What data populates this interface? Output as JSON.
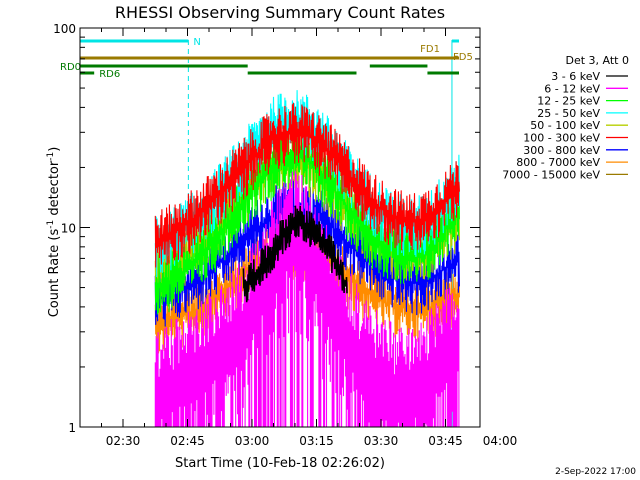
{
  "chart_data": {
    "type": "line",
    "title": "RHESSI Observing Summary Count Rates",
    "xlabel": "Start Time (10-Feb-18 02:26:02)",
    "ylabel_main": "Count Rate (s",
    "ylabel_exp1": "-1",
    "ylabel_mid": " detector",
    "ylabel_exp2": "-1",
    "ylabel_end": ")",
    "timestamp": "2-Sep-2022 17:00",
    "x_range_min": [
      20,
      110
    ],
    "x_ticks": [
      {
        "min": 30,
        "label": "02:30"
      },
      {
        "min": 45,
        "label": "02:45"
      },
      {
        "min": 60,
        "label": "03:00"
      },
      {
        "min": 75,
        "label": "03:15"
      },
      {
        "min": 90,
        "label": "03:30"
      },
      {
        "min": 105,
        "label": "03:45"
      },
      {
        "min": 120,
        "label": "04:00"
      }
    ],
    "ylim": [
      1,
      100
    ],
    "y_scale": "log",
    "y_ticks": [
      {
        "value": 1,
        "label": "1"
      },
      {
        "value": 10,
        "label": "10"
      },
      {
        "value": 100,
        "label": "100"
      }
    ],
    "legend_title": "Det 3, Att 0",
    "series": [
      {
        "name": "3 - 6 keV",
        "color": "#000000",
        "times": [
          58,
          63,
          67,
          71,
          75,
          79,
          82
        ],
        "values": [
          5,
          6.5,
          9,
          11,
          9,
          7,
          5
        ]
      },
      {
        "name": "6 - 12 keV",
        "color": "#ff00ff",
        "times": [
          37,
          40,
          43,
          46,
          49,
          52,
          55,
          58,
          61,
          64,
          67,
          70,
          73,
          76,
          79,
          82,
          85,
          88,
          91,
          94,
          97,
          100,
          103,
          106,
          109
        ],
        "values": [
          1.5,
          1.7,
          1.8,
          2.0,
          2.3,
          2.6,
          3.0,
          3.5,
          4.5,
          6.5,
          8.5,
          10.0,
          8.5,
          6.0,
          4.5,
          3.2,
          2.5,
          2.0,
          1.8,
          1.6,
          1.6,
          1.8,
          2.2,
          2.6,
          3.0
        ]
      },
      {
        "name": "12 - 25 keV",
        "color": "#00ff00",
        "times": [
          37,
          40,
          43,
          46,
          49,
          52,
          55,
          58,
          61,
          64,
          67,
          70,
          73,
          76,
          79,
          82,
          85,
          88,
          91,
          94,
          97,
          100,
          103,
          106,
          109
        ],
        "values": [
          5.0,
          5.3,
          5.8,
          6.5,
          7.5,
          9.0,
          11.0,
          13.5,
          16.5,
          19.5,
          22.0,
          23.0,
          21.5,
          18.5,
          15.5,
          12.5,
          10.5,
          9.0,
          8.0,
          7.3,
          7.0,
          7.3,
          8.5,
          11.0,
          14.0
        ]
      },
      {
        "name": "25 - 50 keV",
        "color": "#00ffff",
        "times": [
          37,
          40,
          43,
          46,
          49,
          52,
          55,
          58,
          61,
          64,
          67,
          70,
          73,
          76,
          79,
          82,
          85,
          88,
          91,
          94,
          97,
          100,
          103,
          106,
          109
        ],
        "values": [
          8.0,
          8.5,
          9.3,
          10.5,
          12.0,
          14.5,
          17.5,
          21.5,
          26.0,
          31.0,
          34.0,
          35.0,
          33.0,
          28.5,
          23.5,
          19.0,
          15.5,
          13.0,
          11.5,
          10.5,
          10.0,
          10.5,
          12.0,
          15.0,
          19.0
        ]
      },
      {
        "name": "50 - 100 keV",
        "color": "#b7cf00",
        "times": [
          37,
          40,
          43,
          46,
          49,
          52,
          55,
          58,
          61,
          64,
          67,
          70,
          73,
          76,
          79,
          82,
          85,
          88,
          91,
          94,
          97,
          100,
          103,
          106,
          109
        ],
        "values": [
          6.0,
          6.3,
          6.8,
          7.5,
          8.5,
          10.0,
          12.0,
          14.5,
          17.0,
          19.5,
          21.0,
          22.0,
          20.5,
          18.0,
          15.0,
          12.5,
          10.5,
          9.0,
          8.2,
          7.6,
          7.3,
          7.6,
          8.5,
          10.0,
          11.5
        ]
      },
      {
        "name": "100 - 300 keV",
        "color": "#ff0000",
        "times": [
          37,
          40,
          43,
          46,
          49,
          52,
          55,
          58,
          61,
          64,
          67,
          70,
          73,
          76,
          79,
          82,
          85,
          88,
          91,
          94,
          97,
          100,
          103,
          106,
          109
        ],
        "values": [
          8.5,
          9.0,
          9.8,
          11.0,
          12.5,
          14.5,
          17.0,
          20.0,
          23.5,
          27.0,
          29.5,
          30.0,
          29.0,
          26.0,
          22.5,
          19.0,
          16.0,
          13.5,
          12.0,
          11.0,
          10.5,
          11.0,
          12.5,
          14.5,
          17.0
        ]
      },
      {
        "name": "300 - 800 keV",
        "color": "#0000ff",
        "times": [
          37,
          40,
          43,
          46,
          49,
          52,
          55,
          58,
          61,
          64,
          67,
          70,
          73,
          76,
          79,
          82,
          85,
          88,
          91,
          94,
          97,
          100,
          103,
          106,
          109
        ],
        "values": [
          4.4,
          4.6,
          4.9,
          5.3,
          5.8,
          6.5,
          7.4,
          8.5,
          9.8,
          11.0,
          12.0,
          12.5,
          12.0,
          11.0,
          9.8,
          8.5,
          7.4,
          6.5,
          5.9,
          5.5,
          5.2,
          5.3,
          5.8,
          6.5,
          7.0
        ]
      },
      {
        "name": "800 - 7000 keV",
        "color": "#ff8c00",
        "times": [
          37,
          40,
          43,
          46,
          49,
          52,
          55,
          58,
          61,
          64,
          67,
          70,
          73,
          76,
          79,
          82,
          85,
          88,
          91,
          94,
          97,
          100,
          103,
          106,
          109
        ],
        "values": [
          3.2,
          3.3,
          3.5,
          3.8,
          4.1,
          4.5,
          5.1,
          5.8,
          6.5,
          7.2,
          7.8,
          8.0,
          7.8,
          7.2,
          6.4,
          5.6,
          5.0,
          4.5,
          4.2,
          4.0,
          3.9,
          3.9,
          4.1,
          4.4,
          4.6
        ]
      }
    ],
    "legend_extra": {
      "name": "7000 - 15000 keV",
      "color": "#9a7a00"
    },
    "state_bars": [
      {
        "name": "N",
        "color": "#00e5e5",
        "level": "top",
        "segments": [
          [
            20,
            45.2
          ],
          [
            106.5,
            120
          ]
        ],
        "label": "N",
        "label_at": 45.2,
        "label_align": "after"
      },
      {
        "name": "FD1",
        "color": "#9a7a00",
        "level": "upper",
        "segments": [
          [
            117,
            120
          ]
        ],
        "label": "FD1",
        "label_at": 117,
        "label_align": "before"
      },
      {
        "name": "FD5",
        "color": "#9a7a00",
        "level": "middle",
        "segments": [
          [
            20,
            118.8
          ]
        ],
        "label": "FD5",
        "label_at": 118.8,
        "label_align": "after"
      },
      {
        "name": "RD0",
        "color": "#007a00",
        "level": "lower",
        "segments": [
          [
            20,
            59.0
          ],
          [
            87.4,
            100.8
          ],
          [
            117.0,
            120.0
          ]
        ],
        "label": "RD0",
        "label_at": 20,
        "label_align": "before-left"
      },
      {
        "name": "RD6",
        "color": "#007a00",
        "level": "bottom",
        "segments": [
          [
            20,
            23.3
          ],
          [
            59.0,
            84.3
          ],
          [
            100.8,
            117.0
          ]
        ],
        "label": "RD6",
        "label_at": 23.3,
        "label_align": "after"
      }
    ],
    "vertical_lines": [
      {
        "min": 20.0,
        "color": "#00e5e5",
        "style": "solid"
      },
      {
        "min": 45.2,
        "color": "#00e5e5",
        "style": "dashed"
      },
      {
        "min": 106.5,
        "color": "#00e5e5",
        "style": "solid"
      },
      {
        "min": 120.0,
        "color": "#00e5e5",
        "style": "dashed"
      }
    ],
    "legend_placement": "right",
    "grid": false
  }
}
